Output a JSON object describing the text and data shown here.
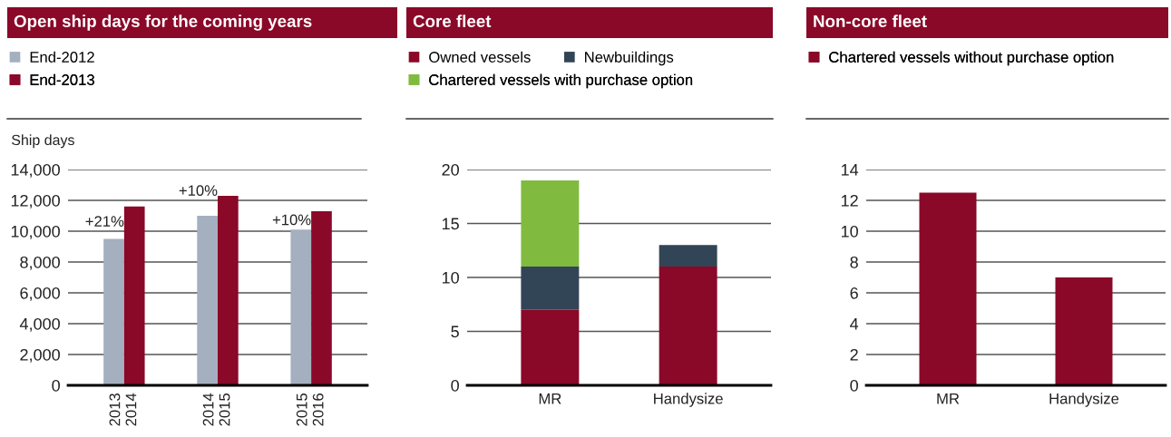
{
  "chart_data": [
    {
      "type": "bar",
      "title": "Open ship days for the coming years",
      "ylabel": "Ship days",
      "categories": [
        "2013\n2014",
        "2014\n2015",
        "2015\n2016"
      ],
      "series": [
        {
          "name": "End-2012",
          "color": "#a4afbf",
          "values": [
            9500,
            11000,
            10100
          ]
        },
        {
          "name": "End-2013",
          "color": "#8a0828",
          "values": [
            11600,
            12300,
            11300
          ]
        }
      ],
      "ylim": [
        0,
        14000
      ],
      "yticks": [
        {
          "value": 0,
          "label": "0"
        },
        {
          "value": 2000,
          "label": "2,000"
        },
        {
          "value": 4000,
          "label": "4,000"
        },
        {
          "value": 6000,
          "label": "6,000"
        },
        {
          "value": 8000,
          "label": "8,000"
        },
        {
          "value": 10000,
          "label": "10,000"
        },
        {
          "value": 12000,
          "label": "12,000"
        },
        {
          "value": 14000,
          "label": "14,000"
        }
      ],
      "annotations": [
        {
          "text": "+21%",
          "x": "2013\n2014",
          "y": 10100
        },
        {
          "text": "+10%",
          "x": "2014\n2015",
          "y": 12100
        },
        {
          "text": "+10%",
          "x": "2015\n2016",
          "y": 10200
        }
      ],
      "grid": "y",
      "legend": "top left"
    },
    {
      "type": "bar",
      "title": "Core fleet",
      "categories": [
        "MR",
        "Handysize"
      ],
      "stacked": true,
      "series": [
        {
          "name": "Owned vessels",
          "color": "#8a0828",
          "values": [
            7,
            11
          ]
        },
        {
          "name": "Newbuildings",
          "color": "#324556",
          "values": [
            4,
            2
          ]
        },
        {
          "name": "Chartered vessels with purchase option",
          "color": "#80bb3f",
          "values": [
            8,
            0
          ]
        }
      ],
      "ylim": [
        0,
        20
      ],
      "yticks": [
        0,
        5,
        10,
        15,
        20
      ],
      "grid": "y",
      "legend": "top left"
    },
    {
      "type": "bar",
      "title": "Non-core fleet",
      "categories": [
        "MR",
        "Handysize"
      ],
      "series": [
        {
          "name": "Chartered vessels without purchase option",
          "color": "#8a0828",
          "values": [
            12.5,
            7
          ]
        }
      ],
      "ylim": [
        0,
        14
      ],
      "yticks": [
        0,
        2,
        4,
        6,
        8,
        10,
        12,
        14
      ],
      "grid": "y",
      "legend": "top left"
    }
  ]
}
